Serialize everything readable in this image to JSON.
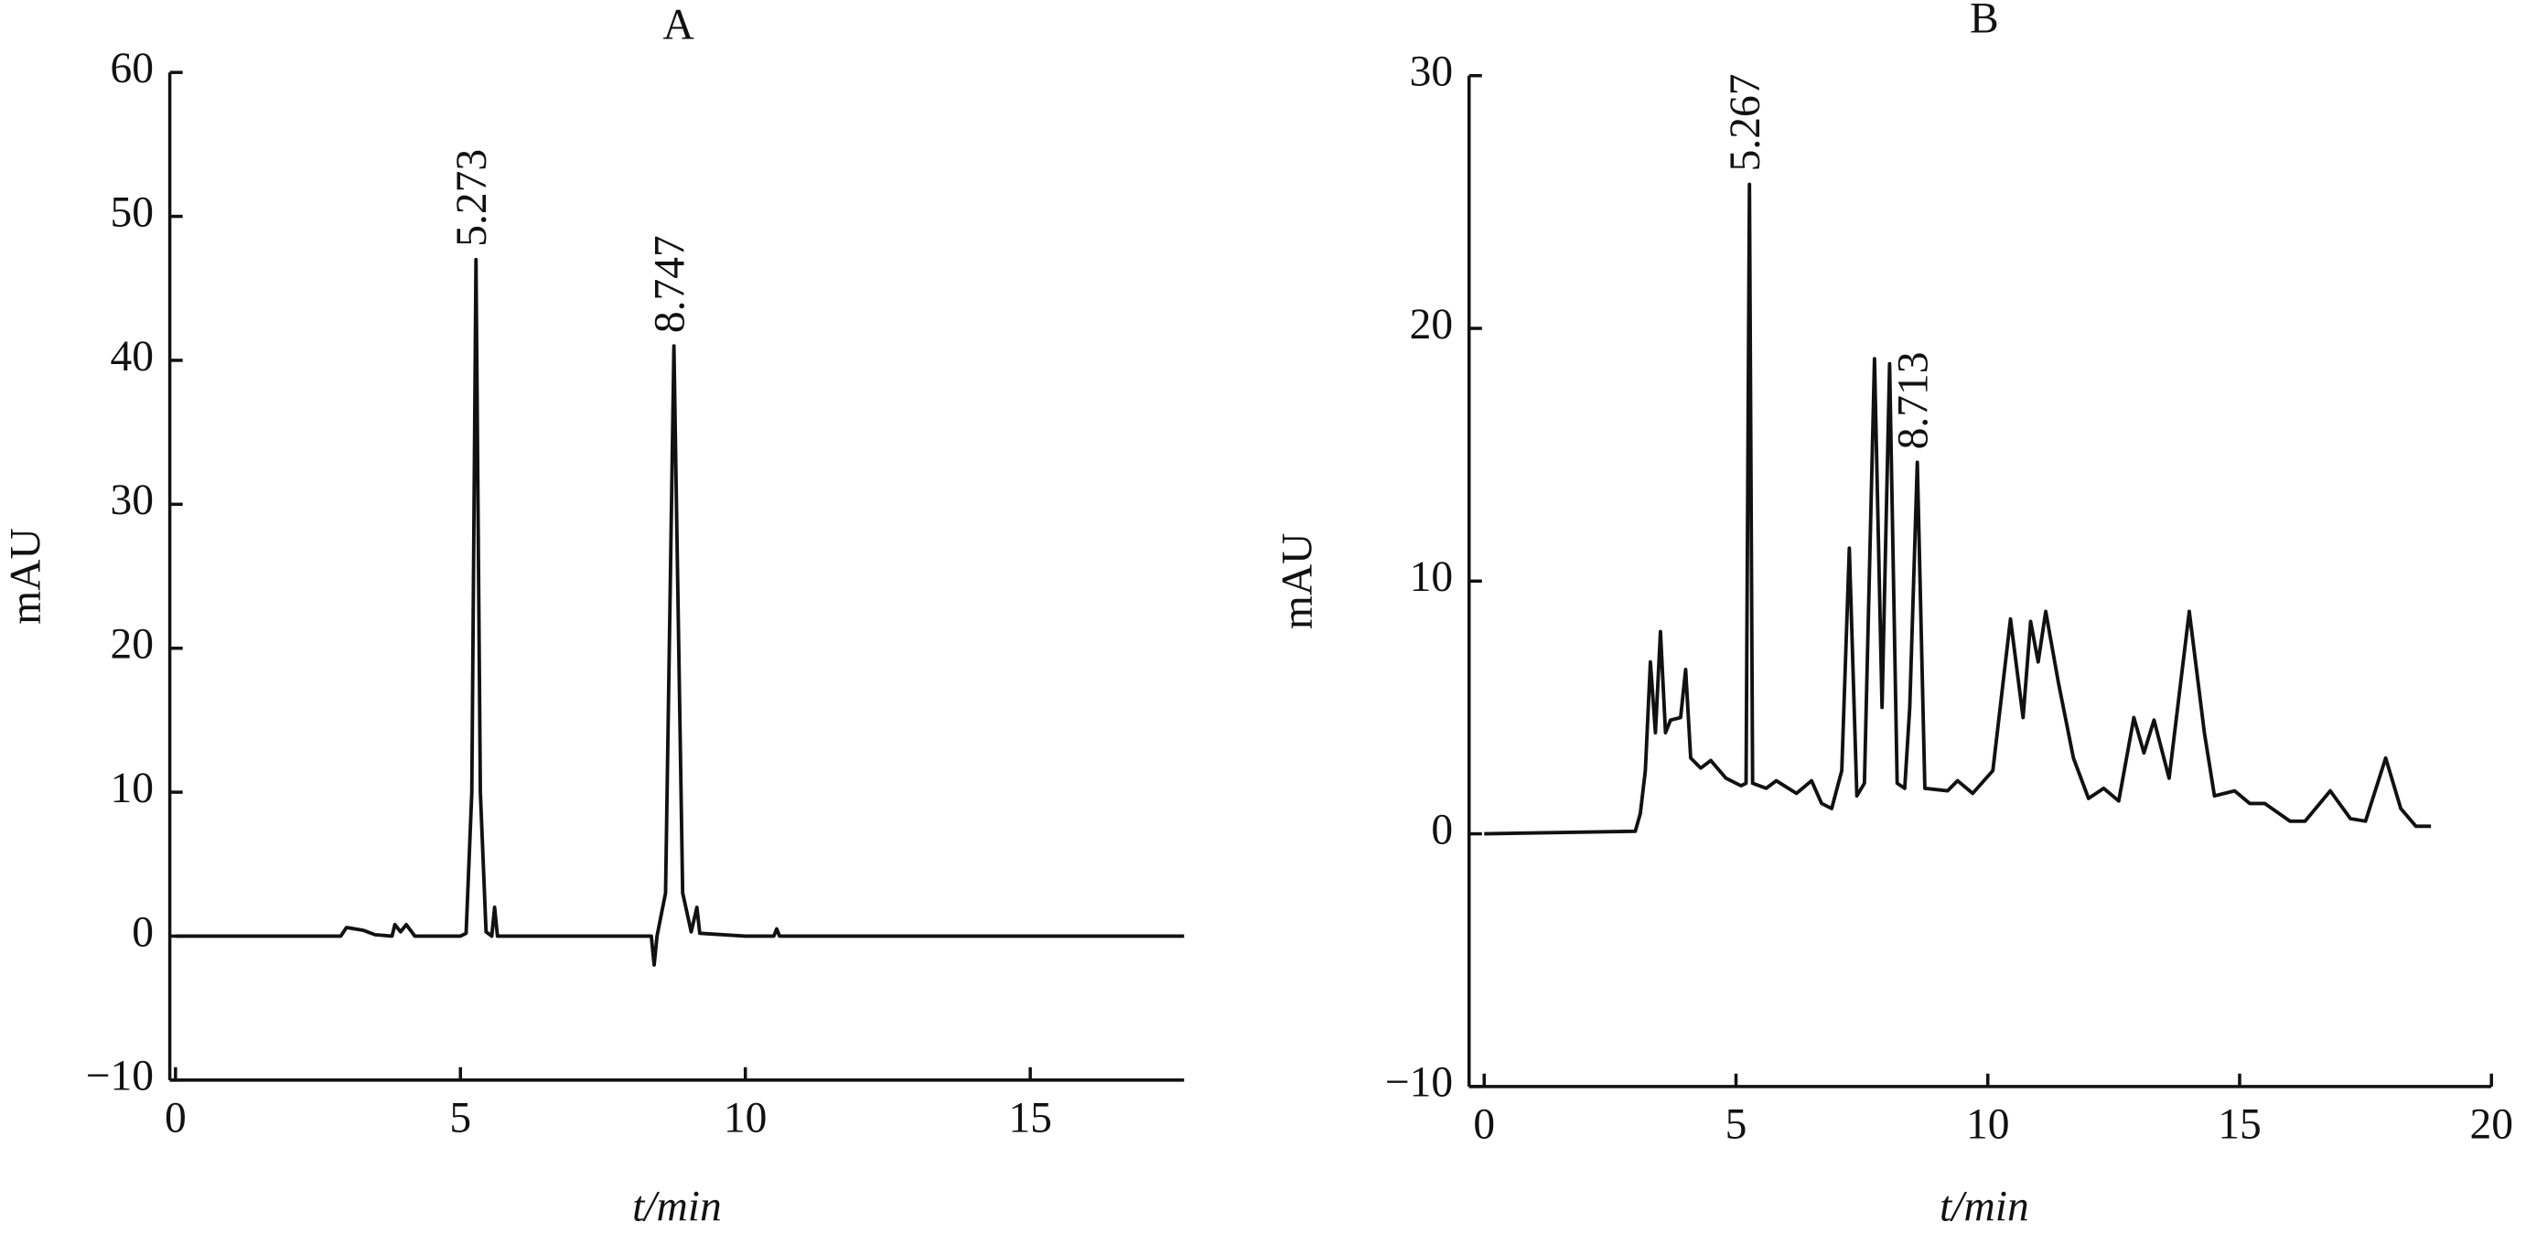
{
  "chart_data": [
    {
      "type": "line",
      "title": "A",
      "xlabel": "t/min",
      "ylabel": "mAU",
      "xlim": [
        -0.1,
        17.7
      ],
      "ylim": [
        -10,
        60
      ],
      "xticks": [
        0,
        5,
        10,
        15
      ],
      "yticks": [
        {
          "value": -10,
          "label": "−10"
        },
        0,
        10,
        20,
        30,
        40,
        50,
        60
      ],
      "series": [
        {
          "name": "A",
          "color": "#111111",
          "x": [
            0,
            2.9,
            3.0,
            3.3,
            3.5,
            3.8,
            3.85,
            3.95,
            4.05,
            4.2,
            5.0,
            5.1,
            5.2,
            5.273,
            5.35,
            5.45,
            5.55,
            5.6,
            5.65,
            8.35,
            8.4,
            8.45,
            8.6,
            8.747,
            8.9,
            9.05,
            9.15,
            9.2,
            10.0,
            10.5,
            10.55,
            10.6,
            17.7
          ],
          "values": [
            0,
            0,
            0.6,
            0.4,
            0.1,
            0,
            0.8,
            0.3,
            0.8,
            0,
            0,
            0.2,
            10,
            47,
            10,
            0.3,
            0,
            2,
            0,
            0,
            -2,
            0,
            3,
            41,
            3,
            0.3,
            2,
            0.2,
            0,
            0,
            0.5,
            0,
            0
          ]
        }
      ],
      "annotations": [
        {
          "text": "5.273",
          "x": 5.273,
          "y": 47
        },
        {
          "text": "8.747",
          "x": 8.747,
          "y": 41
        }
      ]
    },
    {
      "type": "line",
      "title": "B",
      "xlabel": "t/min",
      "ylabel": "mAU",
      "xlim": [
        -0.3,
        20
      ],
      "ylim": [
        -10,
        30
      ],
      "xticks": [
        0,
        5,
        10,
        15,
        20
      ],
      "yticks": [
        {
          "value": -10,
          "label": "−10"
        },
        0,
        10,
        20,
        30
      ],
      "series": [
        {
          "name": "B",
          "color": "#111111",
          "x": [
            0,
            3.0,
            3.1,
            3.2,
            3.3,
            3.4,
            3.5,
            3.6,
            3.7,
            3.9,
            4.0,
            4.1,
            4.3,
            4.5,
            4.8,
            5.1,
            5.2,
            5.267,
            5.33,
            5.6,
            5.8,
            6.2,
            6.5,
            6.7,
            6.9,
            7.1,
            7.25,
            7.4,
            7.55,
            7.75,
            7.9,
            8.05,
            8.2,
            8.35,
            8.45,
            8.6,
            8.75,
            9.2,
            9.4,
            9.7,
            10.1,
            10.45,
            10.7,
            10.85,
            11.0,
            11.15,
            11.4,
            11.7,
            12.0,
            12.3,
            12.6,
            12.9,
            13.1,
            13.3,
            13.6,
            14.0,
            14.3,
            14.5,
            14.9,
            15.2,
            15.5,
            16.0,
            16.3,
            16.8,
            17.2,
            17.5,
            17.9,
            18.2,
            18.5,
            18.8
          ],
          "values": [
            0,
            0.1,
            0.8,
            2.5,
            6.8,
            4.0,
            8.0,
            4.0,
            4.5,
            4.6,
            6.5,
            3.0,
            2.6,
            2.9,
            2.2,
            1.9,
            2.0,
            25.7,
            2.0,
            1.8,
            2.1,
            1.6,
            2.1,
            1.2,
            1.0,
            2.5,
            11.3,
            1.5,
            2.0,
            18.8,
            5.0,
            18.6,
            2.0,
            1.8,
            5.0,
            14.7,
            1.8,
            1.7,
            2.1,
            1.6,
            2.5,
            8.5,
            4.6,
            8.4,
            6.8,
            8.8,
            6.0,
            3.0,
            1.4,
            1.8,
            1.3,
            4.6,
            3.2,
            4.5,
            2.2,
            8.8,
            4.0,
            1.5,
            1.7,
            1.2,
            1.2,
            0.5,
            0.5,
            1.7,
            0.6,
            0.5,
            3.0,
            1.0,
            0.3,
            0.3
          ]
        }
      ],
      "annotations": [
        {
          "text": "5.267",
          "x": 5.267,
          "y": 25.7
        },
        {
          "text": "8.713",
          "x": 8.6,
          "y": 14.7
        }
      ]
    }
  ]
}
